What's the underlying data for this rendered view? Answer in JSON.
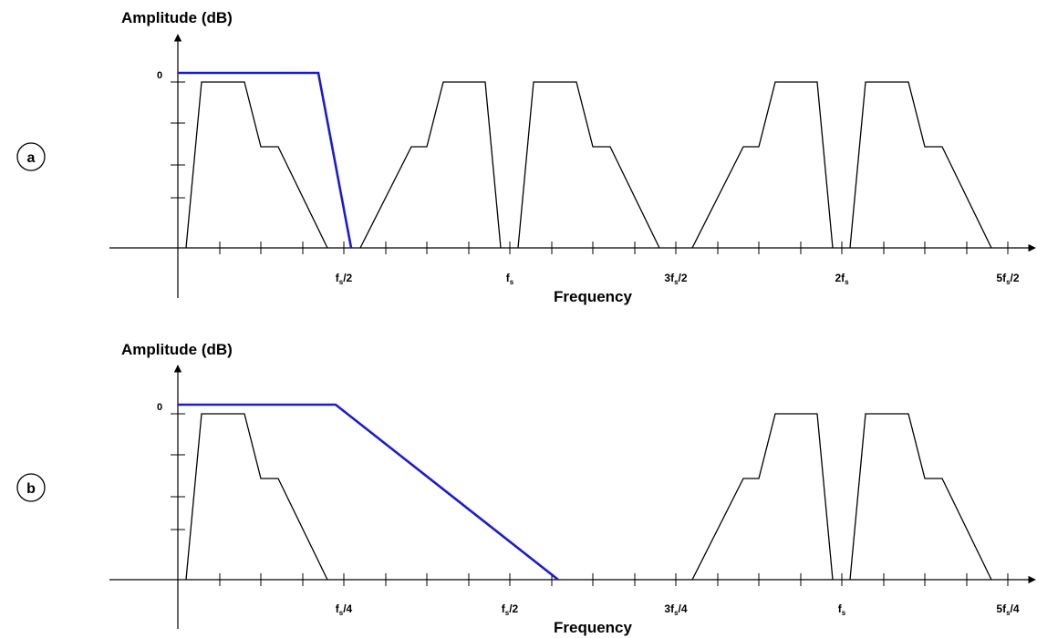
{
  "panels": [
    {
      "id": "a",
      "label": "a",
      "y_title": "Amplitude (dB)",
      "x_title": "Frequency",
      "zero_label": "0",
      "tick_labels": [
        {
          "main": "f",
          "sub": "s",
          "tail": "/2"
        },
        {
          "main": "f",
          "sub": "s",
          "tail": ""
        },
        {
          "main": "3f",
          "sub": "s",
          "tail": "/2"
        },
        {
          "main": "2f",
          "sub": "s",
          "tail": ""
        },
        {
          "main": "5f",
          "sub": "s",
          "tail": "/2"
        }
      ],
      "filter_color": "#1a1ad6"
    },
    {
      "id": "b",
      "label": "b",
      "y_title": "Amplitude (dB)",
      "x_title": "Frequency",
      "zero_label": "0",
      "tick_labels": [
        {
          "main": "f",
          "sub": "s",
          "tail": "/4"
        },
        {
          "main": "f",
          "sub": "s",
          "tail": "/2"
        },
        {
          "main": "3f",
          "sub": "s",
          "tail": "/4"
        },
        {
          "main": "f",
          "sub": "s",
          "tail": ""
        },
        {
          "main": "5f",
          "sub": "s",
          "tail": "/4"
        }
      ],
      "filter_color": "#1a1ad6"
    }
  ]
}
